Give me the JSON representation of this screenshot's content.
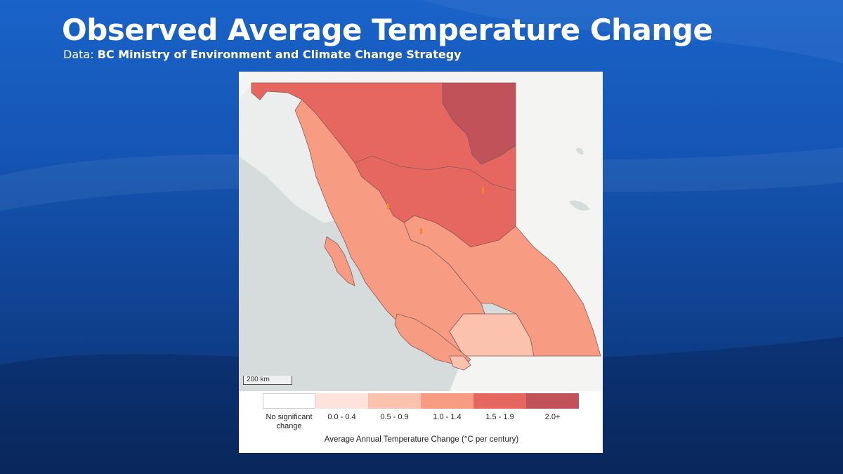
{
  "header": {
    "title": "Observed Average Temperature Change",
    "subtitle_prefix": "Data:",
    "subtitle_source": "BC Ministry of Environment and Climate Change Strategy"
  },
  "map": {
    "scale_label": "200 km",
    "colors": {
      "ocean": "#d6dcdc",
      "land": "#f4f4f2",
      "no_change": "#ffffff",
      "c_0_0_4": "#fde3dc",
      "c_0_5_0_9": "#fbc2ae",
      "c_1_0_1_4": "#f79b82",
      "c_1_5_1_9": "#e6675f",
      "c_2_0_plus": "#c1525a",
      "border": "#8a5a5a"
    }
  },
  "legend": {
    "title": "Average Annual Temperature Change (°C per century)",
    "items": [
      {
        "label": "No significant change",
        "color": "#ffffff"
      },
      {
        "label": "0.0 - 0.4",
        "color": "#fde3dc"
      },
      {
        "label": "0.5 - 0.9",
        "color": "#fbc2ae"
      },
      {
        "label": "1.0 - 1.4",
        "color": "#f79b82"
      },
      {
        "label": "1.5 - 1.9",
        "color": "#e6675f"
      },
      {
        "label": "2.0+",
        "color": "#c1525a"
      }
    ]
  }
}
